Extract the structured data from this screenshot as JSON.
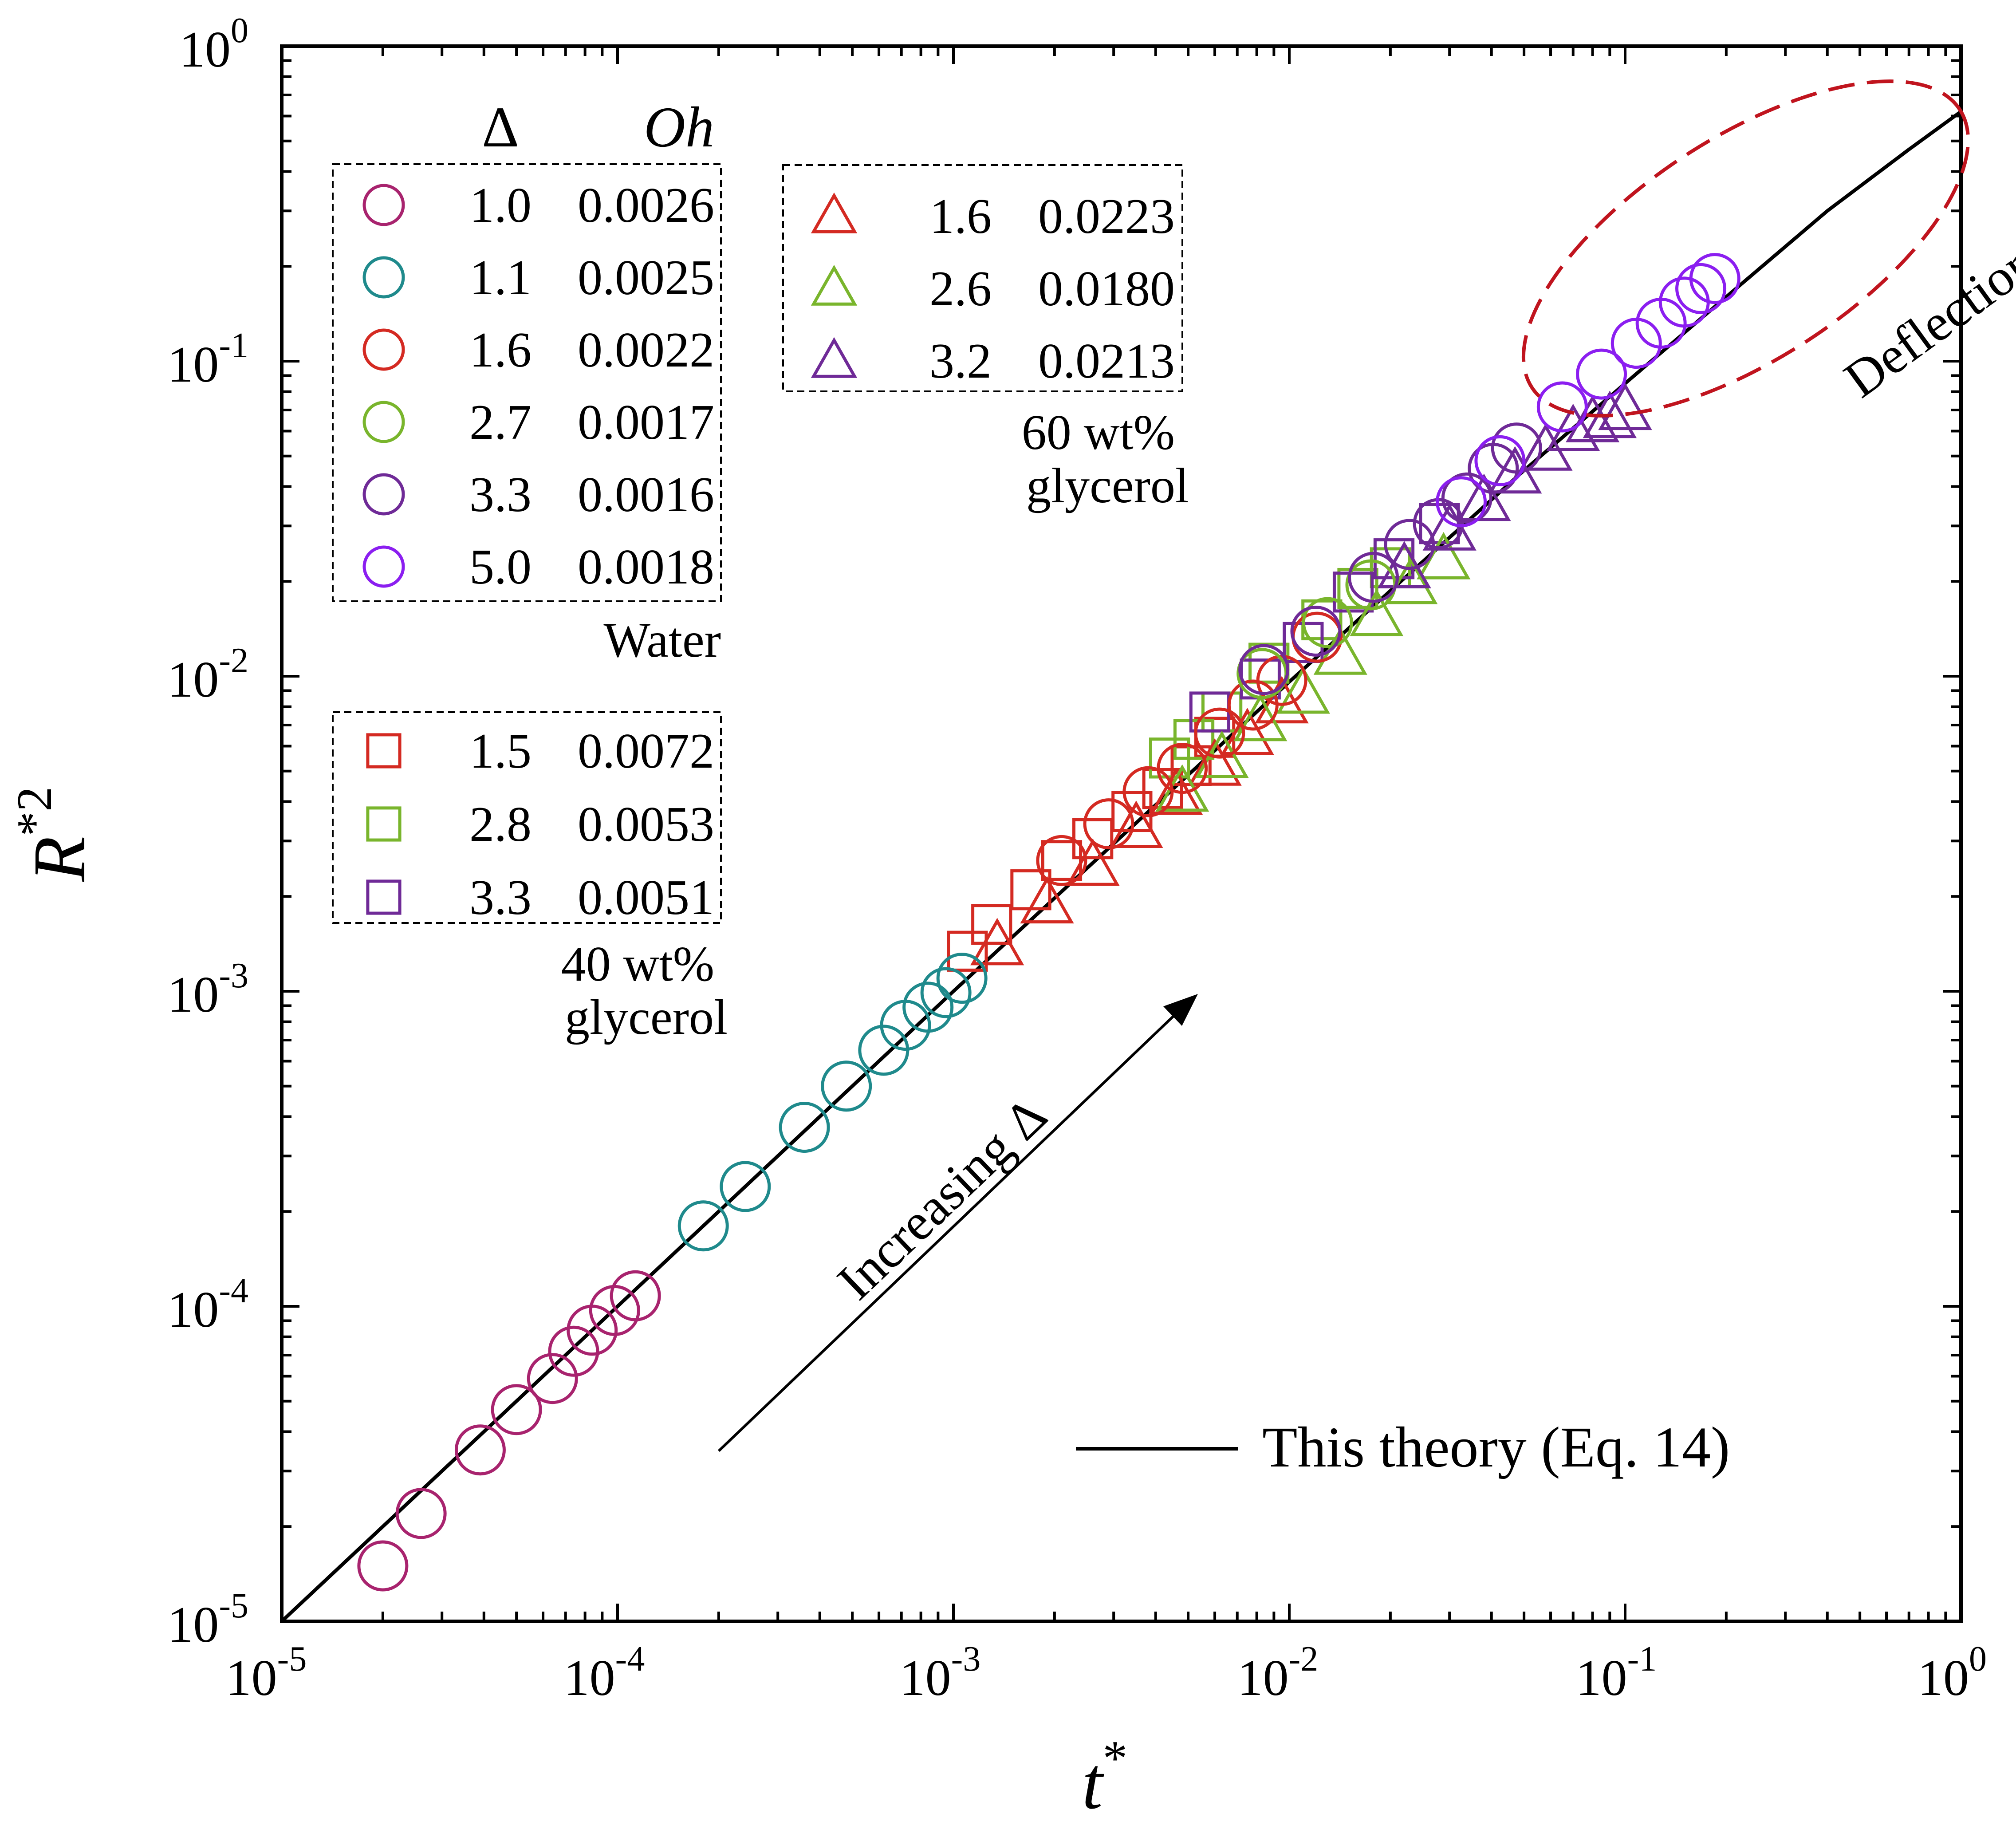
{
  "chart_data": {
    "type": "scatter",
    "x_scale": "log",
    "y_scale": "log",
    "xlabel": "t",
    "xlabel_sup": "*",
    "ylabel": "R",
    "ylabel_sup": "*2",
    "xlim": [
      1e-05,
      1
    ],
    "ylim": [
      1e-05,
      1
    ],
    "x_ticks": [
      {
        "base": "10",
        "exp": "-5"
      },
      {
        "base": "10",
        "exp": "-4"
      },
      {
        "base": "10",
        "exp": "-3"
      },
      {
        "base": "10",
        "exp": "-2"
      },
      {
        "base": "10",
        "exp": "-1"
      },
      {
        "base": "10",
        "exp": "0"
      }
    ],
    "y_ticks": [
      {
        "base": "10",
        "exp": "-5"
      },
      {
        "base": "10",
        "exp": "-4"
      },
      {
        "base": "10",
        "exp": "-3"
      },
      {
        "base": "10",
        "exp": "-2"
      },
      {
        "base": "10",
        "exp": "-1"
      },
      {
        "base": "10",
        "exp": "0"
      }
    ],
    "legend": {
      "header_delta": "Δ",
      "header_oh": "Oh",
      "water_label": "Water",
      "g40_label_1": "40 wt%",
      "g40_label_2": "glycerol",
      "g60_label_1": "60 wt%",
      "g60_label_2": "glycerol",
      "water_rows": [
        {
          "delta": "1.0",
          "oh": "0.0026"
        },
        {
          "delta": "1.1",
          "oh": "0.0025"
        },
        {
          "delta": "1.6",
          "oh": "0.0022"
        },
        {
          "delta": "2.7",
          "oh": "0.0017"
        },
        {
          "delta": "3.3",
          "oh": "0.0016"
        },
        {
          "delta": "5.0",
          "oh": "0.0018"
        }
      ],
      "g40_rows": [
        {
          "delta": "1.5",
          "oh": "0.0072"
        },
        {
          "delta": "2.8",
          "oh": "0.0053"
        },
        {
          "delta": "3.3",
          "oh": "0.0051"
        }
      ],
      "g60_rows": [
        {
          "delta": "1.6",
          "oh": "0.0223"
        },
        {
          "delta": "2.6",
          "oh": "0.0180"
        },
        {
          "delta": "3.2",
          "oh": "0.0213"
        }
      ],
      "theory_label": "This theory (Eq. 14)"
    },
    "annotations": {
      "arrow_label": "Increasing Δ",
      "deflection_label": "Deflection"
    },
    "colors": {
      "magenta": "#A8236E",
      "teal": "#1F8A8C",
      "red": "#D42A22",
      "green": "#79B52C",
      "purple": "#6F2A97",
      "violet": "#8B1EF0",
      "deflection": "#C0141E"
    },
    "theory_curve": {
      "name": "This theory (Eq. 14)",
      "points": [
        [
          1e-05,
          1e-05
        ],
        [
          0.0001,
          0.0001
        ],
        [
          0.001,
          0.001
        ],
        [
          0.01,
          0.0096
        ],
        [
          0.05,
          0.045
        ],
        [
          0.1,
          0.085
        ],
        [
          0.2,
          0.16
        ],
        [
          0.4,
          0.3
        ],
        [
          0.7,
          0.47
        ],
        [
          1.0,
          0.62
        ]
      ]
    },
    "series": [
      {
        "name": "Water Δ=1.0 Oh=0.0026",
        "marker": "circle",
        "color": "#A8236E",
        "x": [
          2e-05,
          2.6e-05,
          3.9e-05,
          5e-05,
          6.4e-05,
          7.4e-05,
          8.4e-05,
          9.8e-05,
          0.000113
        ],
        "y": [
          1.5e-05,
          2.2e-05,
          3.5e-05,
          4.7e-05,
          5.9e-05,
          7.2e-05,
          8.4e-05,
          9.7e-05,
          0.000108
        ]
      },
      {
        "name": "Water Δ=1.1 Oh=0.0025",
        "marker": "circle",
        "color": "#1F8A8C",
        "x": [
          0.00018,
          0.00024,
          0.00036,
          0.00048,
          0.00062,
          0.00072,
          0.00084,
          0.00095,
          0.00106
        ],
        "y": [
          0.00018,
          0.00024,
          0.00037,
          0.0005,
          0.00065,
          0.00078,
          0.00089,
          0.00099,
          0.0011
        ]
      },
      {
        "name": "Water Δ=1.6 Oh=0.0022",
        "marker": "circle",
        "color": "#D42A22",
        "x": [
          0.0021,
          0.0029,
          0.0038,
          0.0048,
          0.0062,
          0.0078,
          0.0095,
          0.0121
        ],
        "y": [
          0.0026,
          0.0034,
          0.0043,
          0.0051,
          0.0066,
          0.0081,
          0.0097,
          0.0133
        ]
      },
      {
        "name": "Water Δ=2.7 Oh=0.0017",
        "marker": "circle",
        "color": "#79B52C",
        "x": [
          0.0083,
          0.013,
          0.0175
        ],
        "y": [
          0.0102,
          0.0148,
          0.0195
        ]
      },
      {
        "name": "Water Δ=3.3 Oh=0.0016",
        "marker": "circle",
        "color": "#6F2A97",
        "x": [
          0.0084,
          0.012,
          0.0178,
          0.0228,
          0.0278,
          0.0338,
          0.0405,
          0.0475
        ],
        "y": [
          0.0105,
          0.0139,
          0.0206,
          0.0262,
          0.0305,
          0.0368,
          0.0457,
          0.053
        ]
      },
      {
        "name": "Water Δ=5.0 Oh=0.0018",
        "marker": "circle",
        "color": "#8B1EF0",
        "x": [
          0.0325,
          0.0424,
          0.065,
          0.085,
          0.108,
          0.128,
          0.15,
          0.168,
          0.185
        ],
        "y": [
          0.0358,
          0.0483,
          0.0716,
          0.091,
          0.114,
          0.132,
          0.154,
          0.17,
          0.183
        ]
      },
      {
        "name": "40 wt% glycerol Δ=1.5 Oh=0.0072",
        "marker": "square",
        "color": "#D42A22",
        "x": [
          0.0011,
          0.0013,
          0.0017,
          0.0021,
          0.0026,
          0.0034,
          0.0042,
          0.0051,
          0.006
        ],
        "y": [
          0.00134,
          0.00163,
          0.0021,
          0.0026,
          0.00305,
          0.00372,
          0.0044,
          0.0052,
          0.0064
        ]
      },
      {
        "name": "40 wt% glycerol Δ=2.8 Oh=0.0053",
        "marker": "square",
        "color": "#79B52C",
        "x": [
          0.0044,
          0.0052,
          0.0063,
          0.0087,
          0.0125,
          0.016,
          0.02
        ],
        "y": [
          0.0055,
          0.0063,
          0.0077,
          0.011,
          0.0151,
          0.019,
          0.0221
        ]
      },
      {
        "name": "40 wt% glycerol Δ=3.3 Oh=0.0051",
        "marker": "square",
        "color": "#6F2A97",
        "x": [
          0.0058,
          0.0082,
          0.011,
          0.0155,
          0.0205,
          0.028
        ],
        "y": [
          0.0077,
          0.0098,
          0.0128,
          0.0185,
          0.0236,
          0.0305
        ]
      },
      {
        "name": "60 wt% glycerol Δ=1.6 Oh=0.0223",
        "marker": "triangle",
        "color": "#D42A22",
        "x": [
          0.00135,
          0.0019,
          0.0026,
          0.0035,
          0.0046,
          0.006,
          0.0075,
          0.0095
        ],
        "y": [
          0.0014,
          0.0019,
          0.0025,
          0.0033,
          0.0042,
          0.0052,
          0.0065,
          0.0082
        ]
      },
      {
        "name": "60 wt% glycerol Δ=2.6 Oh=0.0180",
        "marker": "triangle",
        "color": "#79B52C",
        "x": [
          0.0048,
          0.0063,
          0.0082,
          0.011,
          0.0142,
          0.0182,
          0.023,
          0.0288
        ],
        "y": [
          0.0043,
          0.0055,
          0.0072,
          0.0088,
          0.0117,
          0.0155,
          0.0196,
          0.0235
        ]
      },
      {
        "name": "60 wt% glycerol Δ=3.2 Oh=0.0213",
        "marker": "triangle",
        "color": "#6F2A97",
        "x": [
          0.022,
          0.03,
          0.038,
          0.047,
          0.058,
          0.07,
          0.08,
          0.09,
          0.1
        ],
        "y": [
          0.022,
          0.029,
          0.036,
          0.044,
          0.052,
          0.06,
          0.064,
          0.066,
          0.07
        ]
      }
    ]
  }
}
